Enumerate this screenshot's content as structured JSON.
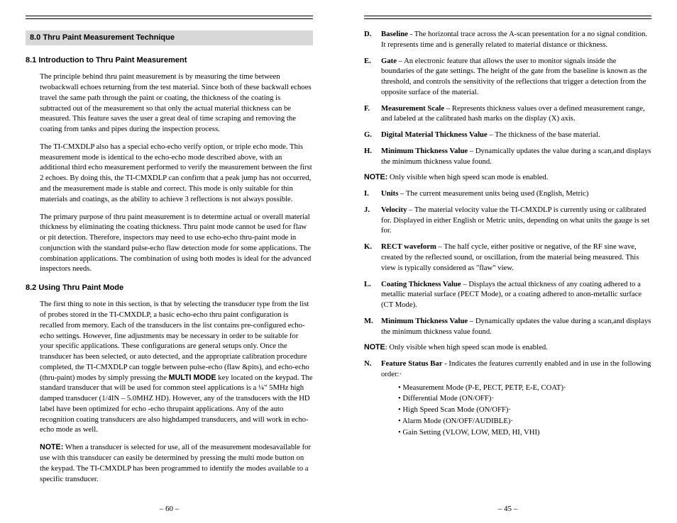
{
  "left": {
    "page_number": "– 60 –",
    "section_heading": "8.0  Thru Paint Measurement Technique",
    "sub1": "8.1   Introduction to Thru Paint Measurement",
    "p1": "The principle behind thru paint measurement is by measuring the time between twobackwall echoes returning from the test material. Since both of these backwall echoes travel the same path through the paint or coating, the thickness of the coating is subtracted out of the measurement so that only the actual material thickness can be measured. This feature saves the user a great deal of time scraping and removing the coating from tanks and pipes during the inspection process.",
    "p2": "The TI-CMXDLP also has a special echo-echo verify option, or triple echo mode. This measurement mode is identical to the echo-echo mode described above, with an additional third echo measurement performed to verify the measurement between the first 2 echoes. By doing this, the TI-CMXDLP can confirm that a peak jump has not occurred, and the measurement made is stable and correct. This mode is only suitable for thin materials and coatings, as the ability to achieve 3 reflections is not always possible.",
    "p3": "The primary purpose of thru paint measurement is to determine actual or overall material thickness by eliminating the coating thickness. Thru paint mode cannot be used for flaw or pit detection. Therefore, inspectors may need to use echo-echo thru-paint mode in conjunction with the standard pulse-echo flaw detection mode for some applications. The combination applications. The combination of using both modes is ideal for the advanced inspectors needs.",
    "sub2": "8.2   Using Thru Paint Mode",
    "p4a": "The first thing to note in this section, is that by selecting the transducer type from the list of probes stored in the TI-CMXDLP, a basic echo-echo thru paint configuration is  recalled from memory. Each of the transducers in the list contains pre-configured echo-echo settings. However, fine adjustments may be necessary in order to be suitable for your specific applications. These configurations are general setups only. Once the transducer has been selected, or auto detected, and the appropriate calibration procedure completed, the TI-CMXDLP can toggle between pulse-echo (flaw &pits), and echo-echo (thru-paint) modes by simply pressing the ",
    "multimode": "MULTI MODE",
    "p4b": " key located on the keypad. The standard transducer that will be used for common steel applications is a ¼\" 5MHz high damped transducer (1/4IN – 5.0MHZ HD). However, any of the transducers with the HD label have been optimized for echo -echo thrupaint applications. Any of the auto recognition coating transducers are also highdamped transducers, and will work in echo-echo mode as well.",
    "note_label": "NOTE:",
    "note_text": " When a transducer is selected for use, all of the measurement modesavailable for use with this transducer can easily be determined by pressing the multi mode button on the keypad. The TI-CMXDLP has been programmed to identify the modes available to a specific transducer."
  },
  "right": {
    "page_number": "– 45 –",
    "defs": [
      {
        "l": "D.",
        "b": "Baseline",
        "t": " - The horizontal trace across the A-scan presentation for a no signal condition. It represents time and is generally related to material distance or thickness."
      },
      {
        "l": "E.",
        "b": "Gate",
        "t": " – An electronic feature that allows the user to monitor signals inside the boundaries of the gate settings. The height of the gate from the baseline is known as the threshold, and controls the sensitivity of the reflections that trigger a detection from the opposite surface of the material."
      },
      {
        "l": "F.",
        "b": "Measurement Scale",
        "t": " – Represents thickness values over a defined measurement range, and labeled at the calibrated hash marks on the display (X) axis."
      },
      {
        "l": "G.",
        "b": "Digital Material Thickness Value",
        "t": " – The thickness of the base material."
      },
      {
        "l": "H.",
        "b": "Minimum Thickness Value",
        "t": " – Dynamically updates the value during a scan,and displays the minimum thickness value found."
      }
    ],
    "note1_label": "NOTE:",
    "note1_text": " Only visible when high speed scan mode is enabled.",
    "defs2": [
      {
        "l": "I.",
        "b": "Units",
        "t": " – The current measurement units being used (English, Metric)"
      },
      {
        "l": "J.",
        "b": "Velocity",
        "t": " – The material velocity value the TI-CMXDLP is currently using or calibrated for. Displayed in either English or Metric units, depending on what units the gauge is set for."
      },
      {
        "l": "K.",
        "b": "RECT waveform",
        "t": " – The half cycle, either positive or negative, of the RF sine wave, created by the reflected sound, or oscillation, from the material being measured. This view is typically considered as \"flaw\" view."
      },
      {
        "l": "L.",
        "b": "Coating Thickness Value",
        "t": " – Displays the actual thickness of any coating adhered to a metallic material surface (PECT Mode), or a coating adhered to anon-metallic surface (CT Mode)."
      },
      {
        "l": "M.",
        "b": "Minimum Thickness Value",
        "t": " – Dynamically updates the value during a scan,and displays the minimum thickness value found."
      }
    ],
    "note2_label": "NOTE",
    "note2_text": ": Only visible when high speed scan mode is enabled.",
    "defN": {
      "l": "N.",
      "b": "Feature Status Bar",
      "t": " - Indicates the features currently enabled and in use in the following order:·"
    },
    "bullets": [
      "Measurement Mode (P-E, PECT, PETP, E-E, COAT)·",
      "Differential Mode (ON/OFF)·",
      "High Speed Scan Mode (ON/OFF)·",
      "Alarm Mode (ON/OFF/AUDIBLE)·",
      "Gain Setting (VLOW, LOW, MED, HI, VHI)"
    ]
  }
}
